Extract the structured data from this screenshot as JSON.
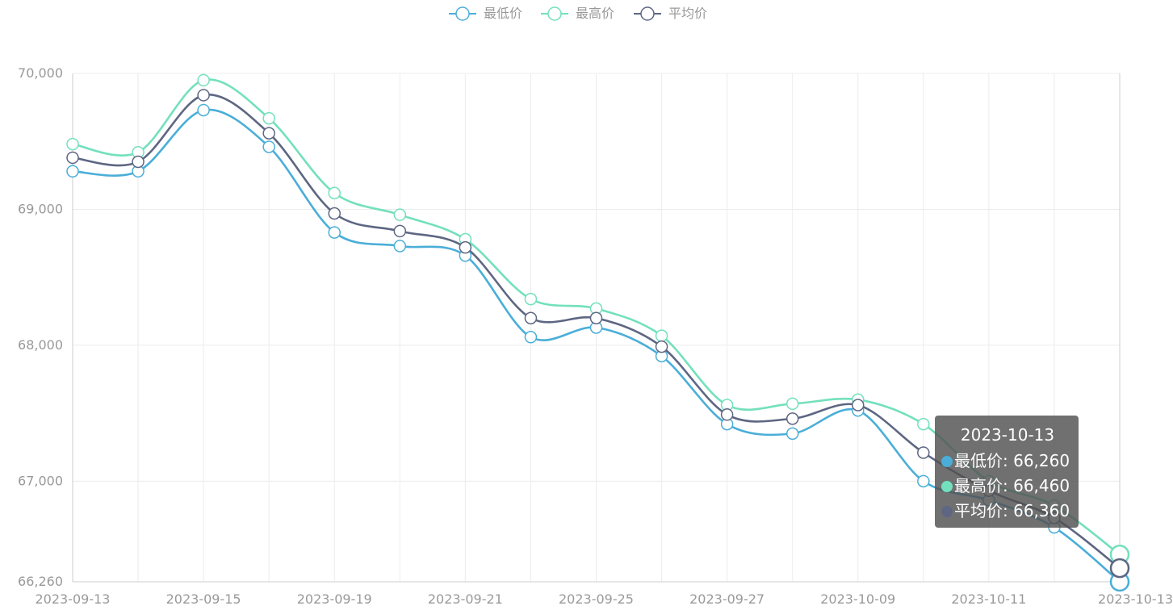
{
  "chart_data": {
    "type": "line",
    "smooth": true,
    "legend_position": "top-center",
    "grid": true,
    "x": [
      "2023-09-13",
      "2023-09-14",
      "2023-09-15",
      "2023-09-18",
      "2023-09-19",
      "2023-09-20",
      "2023-09-21",
      "2023-09-22",
      "2023-09-25",
      "2023-09-26",
      "2023-09-27",
      "2023-09-28",
      "2023-10-09",
      "2023-10-10",
      "2023-10-11",
      "2023-10-12",
      "2023-10-13"
    ],
    "x_tick_labels": [
      "2023-09-13",
      "2023-09-15",
      "2023-09-19",
      "2023-09-21",
      "2023-09-25",
      "2023-09-27",
      "2023-10-09",
      "2023-10-11",
      "2023-10-13"
    ],
    "y_tick_labels": [
      "66,260",
      "67,000",
      "68,000",
      "69,000",
      "70,000"
    ],
    "ylim": [
      66260,
      70000
    ],
    "series": [
      {
        "name": "最低价",
        "color": "#4aaed8",
        "values": [
          69280,
          69280,
          69730,
          69460,
          68830,
          68730,
          68660,
          68060,
          68130,
          67920,
          67420,
          67350,
          67520,
          67000,
          66860,
          66660,
          66260
        ]
      },
      {
        "name": "最高价",
        "color": "#73e0bd",
        "values": [
          69480,
          69420,
          69950,
          69670,
          69120,
          68960,
          68780,
          68340,
          68270,
          68070,
          67560,
          67570,
          67600,
          67420,
          67000,
          66820,
          66460
        ]
      },
      {
        "name": "平均价",
        "color": "#5e6683",
        "values": [
          69380,
          69350,
          69840,
          69560,
          68970,
          68840,
          68720,
          68200,
          68200,
          67990,
          67490,
          67460,
          67560,
          67210,
          66930,
          66730,
          66360
        ]
      }
    ],
    "tooltip": {
      "title": "2023-10-13",
      "rows": [
        {
          "label": "最低价: 66,260",
          "color": "#4aaed8"
        },
        {
          "label": "最高价: 66,460",
          "color": "#73e0bd"
        },
        {
          "label": "平均价: 66,360",
          "color": "#5e6683"
        }
      ]
    }
  }
}
